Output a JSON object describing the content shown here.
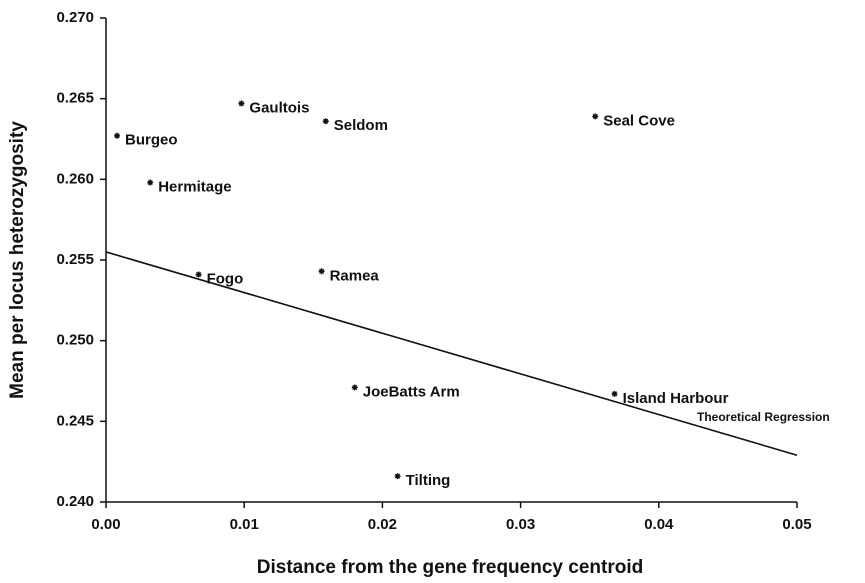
{
  "chart_data": {
    "type": "scatter",
    "x_label": "Distance from the gene frequency centroid",
    "y_label": "Mean per locus heterozygosity",
    "point_labels": [
      "Burgeo",
      "Gaultois",
      "Seldom",
      "Seal Cove",
      "Hermitage",
      "Fogo",
      "Ramea",
      "JoeBatts Arm",
      "Island Harbour",
      "Tilting"
    ],
    "x": [
      0.0008,
      0.0098,
      0.0159,
      0.0354,
      0.0032,
      0.0067,
      0.0156,
      0.018,
      0.0368,
      0.0211
    ],
    "values": [
      0.2627,
      0.2647,
      0.2636,
      0.2639,
      0.2598,
      0.2541,
      0.2543,
      0.2471,
      0.2467,
      0.2416
    ],
    "color": "#111111",
    "regression": {
      "name": "Theoretical Regression",
      "x": [
        0,
        0.05
      ],
      "values": [
        0.2555,
        0.2429
      ]
    },
    "xlim": [
      0,
      0.05
    ],
    "ylim": [
      0.24,
      0.27
    ],
    "xticks": [
      {
        "value": 0,
        "label": "0.00"
      },
      {
        "value": 0.01,
        "label": "0.01"
      },
      {
        "value": 0.02,
        "label": "0.02"
      },
      {
        "value": 0.03,
        "label": "0.03"
      },
      {
        "value": 0.04,
        "label": "0.04"
      },
      {
        "value": 0.05,
        "label": "0.05"
      }
    ],
    "yticks": [
      {
        "value": 0.24,
        "label": "0.240"
      },
      {
        "value": 0.245,
        "label": "0.245"
      },
      {
        "value": 0.25,
        "label": "0.250"
      },
      {
        "value": 0.255,
        "label": "0.255"
      },
      {
        "value": 0.26,
        "label": "0.260"
      },
      {
        "value": 0.265,
        "label": "0.265"
      },
      {
        "value": 0.27,
        "label": "0.270"
      }
    ],
    "grid": false
  }
}
